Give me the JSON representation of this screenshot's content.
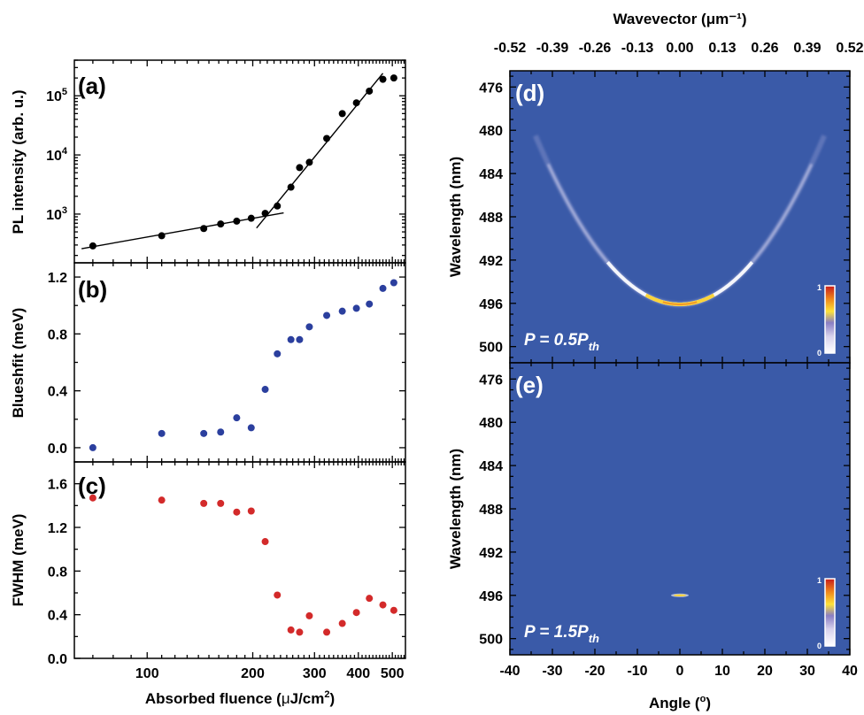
{
  "chart_data": [
    {
      "panel": "(a)",
      "type": "scatter",
      "ylabel": "PL intensity (arb. u.)",
      "yscale": "log",
      "xscale": "log",
      "ylim": [
        150,
        400000
      ],
      "yticks": [
        {
          "v": 1000,
          "base": "10",
          "exp": "3"
        },
        {
          "v": 10000,
          "base": "10",
          "exp": "4"
        },
        {
          "v": 100000,
          "base": "10",
          "exp": "5"
        }
      ],
      "x": [
        70,
        110,
        145,
        162,
        180,
        198,
        217,
        235,
        257,
        272,
        290,
        325,
        360,
        395,
        430,
        470,
        505
      ],
      "y": [
        290,
        430,
        570,
        680,
        760,
        850,
        1030,
        1370,
        2850,
        6100,
        7500,
        19000,
        50000,
        76000,
        120000,
        190000,
        200000
      ],
      "marker_color": "#000000",
      "fit_lines": [
        {
          "x": [
            65,
            245
          ],
          "y": [
            260,
            1050
          ]
        },
        {
          "x": [
            205,
            470
          ],
          "y": [
            580,
            240000
          ]
        }
      ]
    },
    {
      "panel": "(b)",
      "type": "scatter",
      "ylabel": "Blueshfit (meV)",
      "ylim": [
        -0.1,
        1.3
      ],
      "yticks": [
        "0.0",
        "0.4",
        "0.8",
        "1.2"
      ],
      "x": [
        70,
        110,
        145,
        162,
        180,
        198,
        217,
        235,
        257,
        272,
        290,
        325,
        360,
        395,
        430,
        470,
        505
      ],
      "y": [
        0.0,
        0.1,
        0.1,
        0.11,
        0.21,
        0.14,
        0.41,
        0.66,
        0.76,
        0.76,
        0.85,
        0.93,
        0.96,
        0.98,
        1.01,
        1.12,
        1.16
      ],
      "marker_color": "#2b3f9e"
    },
    {
      "panel": "(c)",
      "type": "scatter",
      "ylabel": "FWHM (meV)",
      "xlabel": "Absorbed fluence (μJ/cm²)",
      "xticks": [
        "100",
        "200",
        "300",
        "400",
        "500"
      ],
      "xlim": [
        62,
        545
      ],
      "ylim": [
        0.0,
        1.8
      ],
      "yticks": [
        "0.0",
        "0.4",
        "0.8",
        "1.2",
        "1.6"
      ],
      "x": [
        70,
        110,
        145,
        162,
        180,
        198,
        217,
        235,
        257,
        272,
        290,
        325,
        360,
        395,
        430,
        470,
        505
      ],
      "y": [
        1.47,
        1.45,
        1.42,
        1.42,
        1.34,
        1.35,
        1.07,
        0.58,
        0.26,
        0.24,
        0.39,
        0.24,
        0.32,
        0.42,
        0.55,
        0.49,
        0.44
      ],
      "marker_color": "#d32a2a"
    },
    {
      "panel": "(d)",
      "type": "heatmap",
      "annotation": "P = 0.5P",
      "annotation_sub": "th",
      "ylabel": "Wavelength (nm)",
      "yticks": [
        "476",
        "480",
        "484",
        "488",
        "492",
        "496",
        "500"
      ],
      "ylim": [
        501.5,
        474.5
      ],
      "top_axis_label": "Wavevector (μm⁻¹)",
      "top_ticks": [
        "-0.52",
        "-0.39",
        "-0.26",
        "-0.13",
        "0.00",
        "0.13",
        "0.26",
        "0.39",
        "0.52"
      ],
      "colorbar": {
        "min": "0",
        "max": "1"
      },
      "dispersion": {
        "center_deg": 0,
        "lambda0_nm": 496.1,
        "curvature_nm_per_deg2": 0.0135
      },
      "background": "#3a5aa8"
    },
    {
      "panel": "(e)",
      "type": "heatmap",
      "annotation": "P = 1.5P",
      "annotation_sub": "th",
      "ylabel": "Wavelength (nm)",
      "xlabel": "Angle (°)",
      "xlim": [
        -40,
        40
      ],
      "xticks": [
        "-40",
        "-30",
        "-20",
        "-10",
        "0",
        "10",
        "20",
        "30",
        "40"
      ],
      "yticks": [
        "476",
        "480",
        "484",
        "488",
        "492",
        "496",
        "500"
      ],
      "ylim": [
        501.5,
        474.5
      ],
      "colorbar": {
        "min": "0",
        "max": "1"
      },
      "lasing_point": {
        "angle_deg": 0,
        "lambda_nm": 496.0
      },
      "background": "#3a5aa8"
    }
  ]
}
